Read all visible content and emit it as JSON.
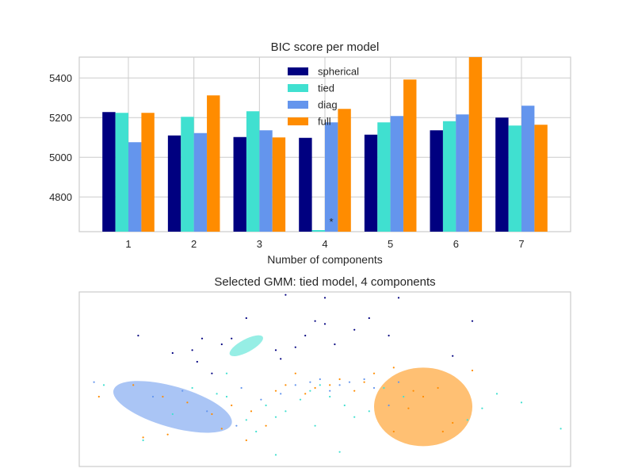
{
  "chart_data": [
    {
      "type": "bar",
      "title": "BIC score per model",
      "xlabel": "Number of components",
      "ylabel": "",
      "categories": [
        "1",
        "2",
        "3",
        "4",
        "5",
        "6",
        "7"
      ],
      "yticks": [
        "4800",
        "5000",
        "5200",
        "5400"
      ],
      "ylim": [
        4625,
        5505
      ],
      "grid": true,
      "legend_position": "top-center",
      "best_marker": "*",
      "best_category": "4",
      "best_series": "tied",
      "series": [
        {
          "name": "spherical",
          "color": "#000080",
          "values": [
            5228,
            5110,
            5102,
            5098,
            5114,
            5136,
            5200
          ]
        },
        {
          "name": "tied",
          "color": "#40e0d0",
          "values": [
            5224,
            5204,
            5232,
            4633,
            5176,
            5182,
            5160
          ]
        },
        {
          "name": "diag",
          "color": "#6495ed",
          "values": [
            5076,
            5122,
            5136,
            5176,
            5208,
            5216,
            5260
          ]
        },
        {
          "name": "full",
          "color": "#ff8c00",
          "values": [
            5224,
            5312,
            5100,
            5244,
            5392,
            5505,
            5164
          ]
        }
      ]
    },
    {
      "type": "scatter",
      "title": "Selected GMM: tied model, 4 components",
      "xlim": [
        -5,
        5
      ],
      "ylim": [
        -3,
        3
      ],
      "grid": false,
      "ellipses": [
        {
          "color": "#6495ed",
          "cx": -3.1,
          "cy": -0.95,
          "rx": 1.25,
          "ry": 0.7,
          "angle": 16,
          "alpha": 0.55
        },
        {
          "color": "#40e0d0",
          "cx": -1.6,
          "cy": 1.15,
          "rx": 0.38,
          "ry": 0.22,
          "angle": -28,
          "alpha": 0.55
        },
        {
          "color": "#ff8c00",
          "cx": 2.0,
          "cy": -0.95,
          "rx": 1.0,
          "ry": 1.35,
          "angle": 0,
          "alpha": 0.55
        }
      ],
      "points": [
        {
          "color": "#000080",
          "xy": [
            [
              -3.8,
              1.5
            ],
            [
              -3.1,
              0.9
            ],
            [
              -2.7,
              1.0
            ],
            [
              -2.3,
              0.2
            ],
            [
              -2.1,
              1.2
            ],
            [
              -1.9,
              1.4
            ],
            [
              -1.6,
              2.1
            ],
            [
              -1.0,
              1.0
            ],
            [
              -0.9,
              0.7
            ],
            [
              -0.6,
              1.1
            ],
            [
              -0.4,
              1.5
            ],
            [
              -0.2,
              2.0
            ],
            [
              0.0,
              1.9
            ],
            [
              0.2,
              1.2
            ],
            [
              0.6,
              1.7
            ],
            [
              0.9,
              2.1
            ],
            [
              1.3,
              1.5
            ],
            [
              2.6,
              0.8
            ],
            [
              3.0,
              2.0
            ],
            [
              -0.8,
              2.9
            ],
            [
              0.0,
              2.8
            ],
            [
              1.5,
              2.8
            ],
            [
              -2.5,
              1.4
            ],
            [
              -2.6,
              0.6
            ]
          ]
        },
        {
          "color": "#40e0d0",
          "xy": [
            [
              -4.5,
              -0.2
            ],
            [
              -3.7,
              -2.1
            ],
            [
              -3.1,
              -1.2
            ],
            [
              -2.7,
              -0.3
            ],
            [
              -2.2,
              -0.5
            ],
            [
              -2.0,
              -0.6
            ],
            [
              -1.6,
              -1.4
            ],
            [
              -1.2,
              -0.9
            ],
            [
              -1.0,
              -1.3
            ],
            [
              -0.8,
              -1.1
            ],
            [
              -0.5,
              -0.7
            ],
            [
              -0.3,
              -0.4
            ],
            [
              -0.1,
              -0.2
            ],
            [
              0.1,
              -0.6
            ],
            [
              0.4,
              -0.9
            ],
            [
              0.6,
              -1.3
            ],
            [
              0.9,
              -1.1
            ],
            [
              1.2,
              -0.3
            ],
            [
              1.6,
              -0.6
            ],
            [
              2.9,
              -1.4
            ],
            [
              3.2,
              -1.0
            ],
            [
              3.5,
              -0.5
            ],
            [
              4.0,
              -0.8
            ],
            [
              4.8,
              -1.7
            ],
            [
              -1.0,
              -2.6
            ],
            [
              0.3,
              -2.5
            ],
            [
              -2.0,
              0.2
            ],
            [
              -1.4,
              -1.8
            ],
            [
              -0.2,
              -1.6
            ]
          ]
        },
        {
          "color": "#6495ed",
          "xy": [
            [
              -4.7,
              -0.1
            ],
            [
              -3.5,
              -0.6
            ],
            [
              -2.9,
              -0.4
            ],
            [
              -2.4,
              -1.1
            ],
            [
              -1.8,
              -1.6
            ],
            [
              -1.3,
              -0.7
            ],
            [
              -0.9,
              -0.5
            ],
            [
              -0.6,
              -0.2
            ],
            [
              -0.3,
              -0.1
            ],
            [
              -0.1,
              0.0
            ],
            [
              0.1,
              -0.4
            ],
            [
              0.3,
              -0.2
            ],
            [
              0.5,
              -0.1
            ],
            [
              0.8,
              0.0
            ],
            [
              1.0,
              -0.3
            ],
            [
              1.3,
              -0.9
            ],
            [
              1.5,
              -0.1
            ],
            [
              -1.7,
              -0.3
            ]
          ]
        },
        {
          "color": "#ff8c00",
          "xy": [
            [
              -4.6,
              -0.6
            ],
            [
              -3.9,
              -0.2
            ],
            [
              -3.3,
              -0.6
            ],
            [
              -2.8,
              -0.8
            ],
            [
              -2.3,
              -1.2
            ],
            [
              -2.1,
              -1.7
            ],
            [
              -1.9,
              -0.9
            ],
            [
              -1.5,
              -1.1
            ],
            [
              -1.2,
              -1.6
            ],
            [
              -1.0,
              -0.4
            ],
            [
              -0.8,
              -0.2
            ],
            [
              -0.6,
              0.2
            ],
            [
              -0.4,
              -0.5
            ],
            [
              -0.2,
              -0.3
            ],
            [
              0.1,
              -0.2
            ],
            [
              0.3,
              0.0
            ],
            [
              0.6,
              -0.4
            ],
            [
              0.8,
              -0.1
            ],
            [
              1.0,
              0.2
            ],
            [
              1.4,
              0.4
            ],
            [
              1.8,
              -0.4
            ],
            [
              2.0,
              -0.6
            ],
            [
              2.3,
              -0.3
            ],
            [
              2.6,
              -1.5
            ],
            [
              3.0,
              0.3
            ],
            [
              1.4,
              -1.8
            ],
            [
              1.7,
              -1.0
            ],
            [
              2.4,
              -1.8
            ],
            [
              -3.7,
              -2.0
            ],
            [
              -1.6,
              -2.1
            ],
            [
              -3.2,
              -1.9
            ]
          ]
        }
      ]
    }
  ]
}
